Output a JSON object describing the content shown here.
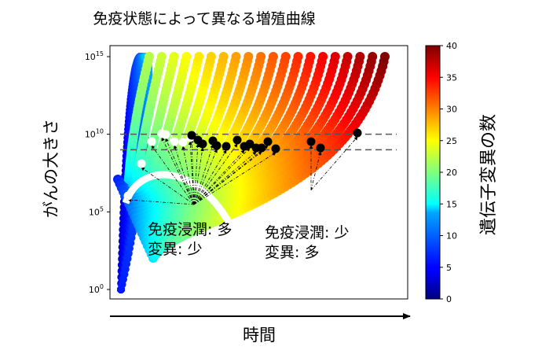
{
  "chart_data": {
    "type": "scatter",
    "title": "免疫状態によって異なる増殖曲線",
    "xlabel": "時間",
    "ylabel": "がんの大きさ",
    "yscale": "log",
    "ylim": [
      1,
      1000000000000000.0
    ],
    "yticks": [
      {
        "value": 1,
        "mantissa": "10",
        "exp": "0"
      },
      {
        "value": 100000,
        "mantissa": "10",
        "exp": "5"
      },
      {
        "value": 10000000000,
        "mantissa": "10",
        "exp": "10"
      },
      {
        "value": 1000000000000000,
        "mantissa": "10",
        "exp": "15"
      }
    ],
    "colorbar": {
      "label": "遺伝子変異の数",
      "colormap": "jet",
      "min": 0,
      "max": 40,
      "ticks": [
        "0",
        "5",
        "10",
        "15",
        "20",
        "25",
        "30",
        "35",
        "40"
      ]
    },
    "reference_lines_y": [
      10000000000,
      1000000000
    ],
    "series": [
      {
        "immune_infiltration": "high",
        "mutations": "low",
        "min_size": 10000000,
        "peak_size": 30000000,
        "arrow_origin_size": 300000
      },
      {
        "immune_infiltration": "low",
        "mutations": "high",
        "min_size": 1000000,
        "peak_size": 10000000000,
        "arrow_origin_size": 300000
      }
    ],
    "annotations": [
      {
        "id": "high",
        "line1": "免疫浸潤: 多",
        "line2": "変異: 少"
      },
      {
        "id": "low",
        "line1": "免疫浸潤: 少",
        "line2": "変異: 多"
      }
    ],
    "x_axis_arrow": true,
    "grid": false,
    "legend": "none"
  }
}
